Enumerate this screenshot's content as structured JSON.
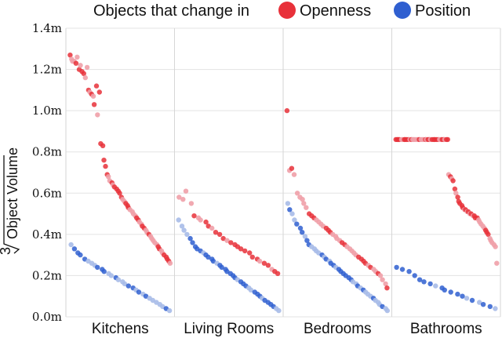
{
  "chart_data": {
    "type": "scatter",
    "legend": {
      "prefix": "Objects that change in",
      "position": "top"
    },
    "ylabel": "Object Volume",
    "ylabel_root_index": "3",
    "ylim": [
      0,
      1.4
    ],
    "yticks": [
      {
        "value": 0.0,
        "label": "0.0m"
      },
      {
        "value": 0.2,
        "label": "0.2m"
      },
      {
        "value": 0.4,
        "label": "0.4m"
      },
      {
        "value": 0.6,
        "label": "0.6m"
      },
      {
        "value": 0.8,
        "label": "0.8m"
      },
      {
        "value": 1.0,
        "label": "1.0m"
      },
      {
        "value": 1.2,
        "label": "1.2m"
      },
      {
        "value": 1.4,
        "label": "1.4m"
      }
    ],
    "categories": [
      "Kitchens",
      "Living Rooms",
      "Bedrooms",
      "Bathrooms"
    ],
    "series": [
      {
        "name": "Openness",
        "color": "#e8313a",
        "light_color": "#f0a0a8",
        "points": [
          {
            "category": "Kitchens",
            "values": [
              1.27,
              1.25,
              1.24,
              1.24,
              1.23,
              1.26,
              1.2,
              1.22,
              1.19,
              1.18,
              1.16,
              1.21,
              1.1,
              1.09,
              1.08,
              1.07,
              1.03,
              1.12,
              0.98,
              1.09,
              0.84,
              0.83,
              0.76,
              0.73,
              0.69,
              0.68,
              0.66,
              0.65,
              0.64,
              0.63,
              0.62,
              0.61,
              0.6,
              0.58,
              0.57,
              0.56,
              0.55,
              0.54,
              0.53,
              0.52,
              0.51,
              0.5,
              0.49,
              0.48,
              0.47,
              0.46,
              0.45,
              0.44,
              0.43,
              0.42,
              0.41,
              0.4,
              0.39,
              0.38,
              0.37,
              0.36,
              0.35,
              0.34,
              0.33,
              0.32,
              0.31,
              0.3,
              0.29,
              0.28,
              0.27,
              0.26
            ]
          },
          {
            "category": "Living Rooms",
            "values": [
              0.58,
              0.57,
              0.61,
              0.55,
              0.49,
              0.48,
              0.47,
              0.46,
              0.44,
              0.43,
              0.41,
              0.4,
              0.38,
              0.37,
              0.36,
              0.35,
              0.34,
              0.33,
              0.32,
              0.31,
              0.29,
              0.28,
              0.27,
              0.26,
              0.25,
              0.23,
              0.22,
              0.21
            ]
          },
          {
            "category": "Bedrooms",
            "values": [
              1.0,
              0.71,
              0.72,
              0.69,
              0.6,
              0.58,
              0.57,
              0.55,
              0.53,
              0.5,
              0.49,
              0.48,
              0.47,
              0.46,
              0.45,
              0.44,
              0.43,
              0.42,
              0.41,
              0.4,
              0.39,
              0.38,
              0.37,
              0.36,
              0.35,
              0.34,
              0.33,
              0.32,
              0.31,
              0.3,
              0.29,
              0.28,
              0.27,
              0.26,
              0.25,
              0.24,
              0.23,
              0.22,
              0.21,
              0.2,
              0.18,
              0.16,
              0.14
            ]
          },
          {
            "category": "Bathrooms",
            "values": [
              0.86,
              0.86,
              0.86,
              0.86,
              0.86,
              0.86,
              0.86,
              0.86,
              0.86,
              0.86,
              0.86,
              0.86,
              0.86,
              0.86,
              0.86,
              0.86,
              0.86,
              0.86,
              0.86,
              0.86,
              0.86,
              0.86,
              0.86,
              0.86,
              0.86,
              0.86,
              0.86,
              0.86,
              0.86,
              0.86,
              0.86,
              0.86,
              0.86,
              0.86,
              0.86,
              0.86,
              0.86,
              0.86,
              0.69,
              0.68,
              0.67,
              0.66,
              0.62,
              0.6,
              0.58,
              0.56,
              0.55,
              0.54,
              0.53,
              0.52,
              0.52,
              0.51,
              0.51,
              0.5,
              0.5,
              0.49,
              0.49,
              0.48,
              0.48,
              0.47,
              0.46,
              0.45,
              0.44,
              0.43,
              0.42,
              0.41,
              0.4,
              0.38,
              0.37,
              0.36,
              0.35,
              0.34,
              0.26
            ]
          }
        ]
      },
      {
        "name": "Position",
        "color": "#2f5fd0",
        "light_color": "#a7bbe8",
        "points": [
          {
            "category": "Kitchens",
            "values": [
              0.35,
              0.33,
              0.31,
              0.3,
              0.28,
              0.27,
              0.26,
              0.25,
              0.24,
              0.23,
              0.22,
              0.21,
              0.2,
              0.19,
              0.18,
              0.17,
              0.16,
              0.15,
              0.14,
              0.13,
              0.12,
              0.11,
              0.1,
              0.09,
              0.08,
              0.07,
              0.06,
              0.05,
              0.04,
              0.03
            ]
          },
          {
            "category": "Living Rooms",
            "values": [
              0.47,
              0.44,
              0.42,
              0.4,
              0.38,
              0.36,
              0.34,
              0.33,
              0.32,
              0.31,
              0.3,
              0.29,
              0.28,
              0.27,
              0.26,
              0.25,
              0.24,
              0.23,
              0.22,
              0.21,
              0.2,
              0.19,
              0.18,
              0.17,
              0.16,
              0.15,
              0.14,
              0.13,
              0.12,
              0.11,
              0.1,
              0.09,
              0.08,
              0.07,
              0.06,
              0.05,
              0.04,
              0.03
            ]
          },
          {
            "category": "Bedrooms",
            "values": [
              0.55,
              0.52,
              0.5,
              0.47,
              0.45,
              0.43,
              0.41,
              0.39,
              0.37,
              0.35,
              0.34,
              0.33,
              0.32,
              0.31,
              0.3,
              0.29,
              0.28,
              0.27,
              0.26,
              0.25,
              0.24,
              0.23,
              0.22,
              0.21,
              0.2,
              0.19,
              0.18,
              0.17,
              0.16,
              0.15,
              0.14,
              0.13,
              0.12,
              0.11,
              0.1,
              0.09,
              0.08,
              0.07,
              0.06,
              0.05,
              0.04,
              0.03
            ]
          },
          {
            "category": "Bathrooms",
            "values": [
              0.24,
              0.23,
              0.22,
              0.2,
              0.18,
              0.17,
              0.16,
              0.15,
              0.14,
              0.13,
              0.12,
              0.11,
              0.1,
              0.09,
              0.08,
              0.07,
              0.06,
              0.05,
              0.04
            ]
          }
        ]
      }
    ]
  }
}
